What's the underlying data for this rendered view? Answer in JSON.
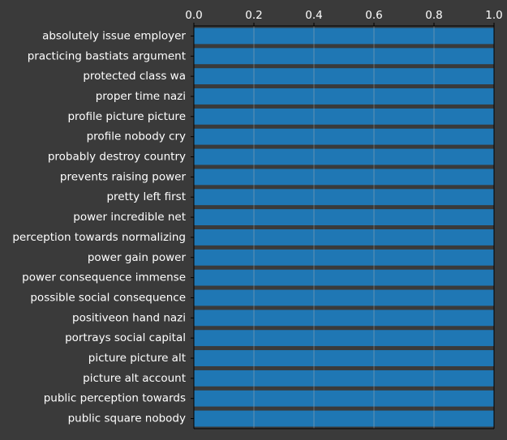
{
  "chart_data": {
    "type": "bar",
    "orientation": "horizontal",
    "x_axis_position": "top",
    "grid": true,
    "xlim": [
      0,
      1
    ],
    "x_ticks": [
      "0.0",
      "0.2",
      "0.4",
      "0.6",
      "0.8",
      "1.0"
    ],
    "categories": [
      "absolutely issue employer",
      "practicing bastiats argument",
      "protected class wa",
      "proper time nazi",
      "profile picture picture",
      "profile nobody cry",
      "probably destroy country",
      "prevents raising power",
      "pretty left first",
      "power incredible net",
      "perception towards normalizing",
      "power gain power",
      "power consequence immense",
      "possible social consequence",
      "positiveon hand nazi",
      "portrays social capital",
      "picture picture alt",
      "picture alt account",
      "public perception towards",
      "public square nobody"
    ],
    "values": [
      1,
      1,
      1,
      1,
      1,
      1,
      1,
      1,
      1,
      1,
      1,
      1,
      1,
      1,
      1,
      1,
      1,
      1,
      1,
      1
    ],
    "colors": {
      "background": "#3a3a3a",
      "bar": "#1f77b4",
      "axis": "#000000",
      "grid": "#b0b0b0",
      "text": "#ffffff"
    }
  }
}
